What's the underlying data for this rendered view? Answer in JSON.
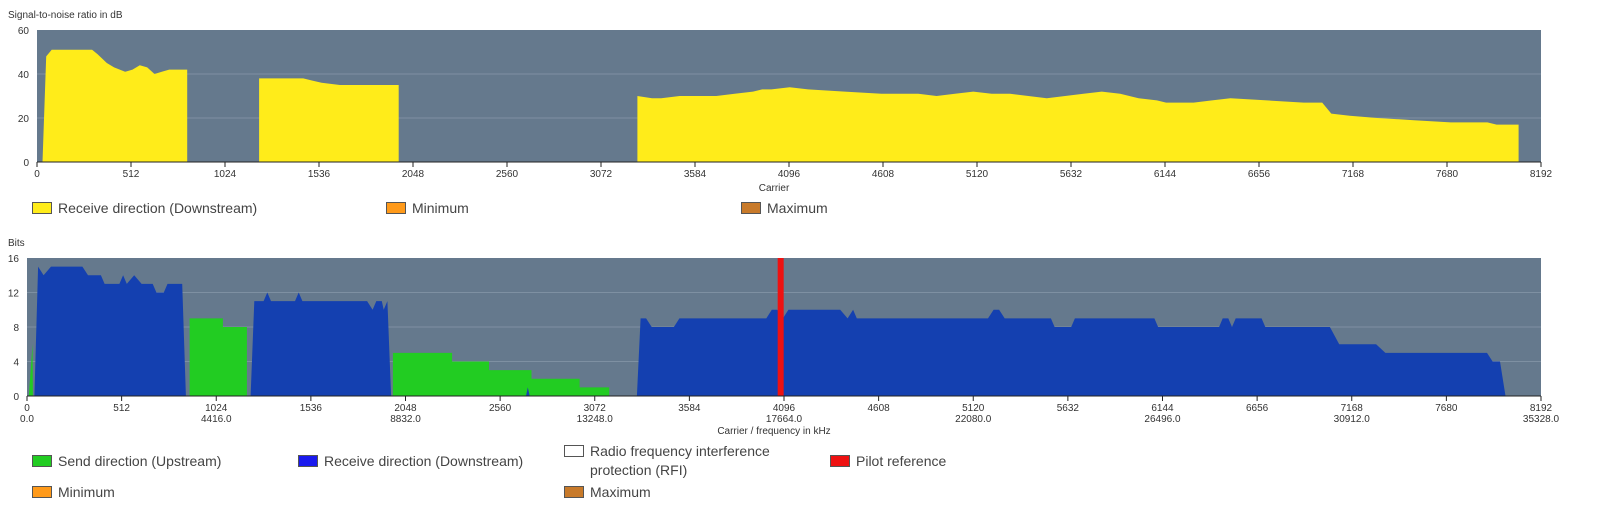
{
  "colors": {
    "plot_bg": "#65798d",
    "snr_fill": "#ffec1a",
    "up_fill": "#22cc22",
    "down_fill": "#1440b0",
    "pilot": "#ee1111",
    "rfi": "#ffffff",
    "minimum": "#ff9a1a",
    "maximum": "#c87a2a"
  },
  "chart_data": [
    {
      "type": "area",
      "ylabel": "Signal-to-noise ratio in dB",
      "xlabel": "Carrier",
      "xlim": [
        0,
        8192
      ],
      "ylim": [
        0,
        60
      ],
      "yticks": [
        0,
        20,
        40,
        60
      ],
      "xticks": [
        0,
        512,
        1024,
        1536,
        2048,
        2560,
        3072,
        3584,
        4096,
        4608,
        5120,
        5632,
        6144,
        6656,
        7168,
        7680,
        8192
      ],
      "grid": true,
      "series": [
        {
          "name": "Receive direction (Downstream)",
          "segments": [
            [
              [
                30,
                0
              ],
              [
                50,
                48
              ],
              [
                80,
                51
              ],
              [
                150,
                51
              ],
              [
                250,
                51
              ],
              [
                300,
                51
              ],
              [
                330,
                49
              ],
              [
                380,
                45
              ],
              [
                420,
                43
              ],
              [
                480,
                41
              ],
              [
                520,
                42
              ],
              [
                560,
                44
              ],
              [
                600,
                43
              ],
              [
                640,
                40
              ],
              [
                680,
                41
              ],
              [
                720,
                42
              ],
              [
                760,
                42
              ],
              [
                818,
                42
              ],
              [
                818,
                0
              ]
            ],
            [
              [
                1210,
                0
              ],
              [
                1210,
                38
              ],
              [
                1450,
                38
              ],
              [
                1500,
                37
              ],
              [
                1550,
                36
              ],
              [
                1650,
                35
              ],
              [
                1800,
                35
              ],
              [
                1900,
                35
              ],
              [
                1950,
                35
              ],
              [
                1970,
                35
              ],
              [
                1970,
                0
              ]
            ],
            [
              [
                3270,
                0
              ],
              [
                3270,
                30
              ],
              [
                3350,
                29
              ],
              [
                3400,
                29
              ],
              [
                3500,
                30
              ],
              [
                3584,
                30
              ],
              [
                3700,
                30
              ],
              [
                3800,
                31
              ],
              [
                3900,
                32
              ],
              [
                3950,
                33
              ],
              [
                4000,
                33
              ],
              [
                4100,
                34
              ],
              [
                4200,
                33
              ],
              [
                4400,
                32
              ],
              [
                4600,
                31
              ],
              [
                4800,
                31
              ],
              [
                4900,
                30
              ],
              [
                5000,
                31
              ],
              [
                5100,
                32
              ],
              [
                5200,
                31
              ],
              [
                5300,
                31
              ],
              [
                5400,
                30
              ],
              [
                5500,
                29
              ],
              [
                5600,
                30
              ],
              [
                5700,
                31
              ],
              [
                5800,
                32
              ],
              [
                5900,
                31
              ],
              [
                6000,
                29
              ],
              [
                6100,
                28
              ],
              [
                6150,
                27
              ],
              [
                6300,
                27
              ],
              [
                6400,
                28
              ],
              [
                6500,
                29
              ],
              [
                6700,
                28
              ],
              [
                6900,
                27
              ],
              [
                7000,
                27
              ],
              [
                7050,
                22
              ],
              [
                7150,
                21
              ],
              [
                7300,
                20
              ],
              [
                7500,
                19
              ],
              [
                7700,
                18
              ],
              [
                7900,
                18
              ],
              [
                7950,
                17
              ],
              [
                8070,
                17
              ],
              [
                8070,
                0
              ]
            ]
          ]
        }
      ],
      "legend": [
        "Receive direction (Downstream)",
        "Minimum",
        "Maximum"
      ]
    },
    {
      "type": "area",
      "ylabel": "Bits",
      "xlabel": "Carrier / frequency in kHz",
      "xlim": [
        0,
        8192
      ],
      "ylim": [
        0,
        16
      ],
      "yticks": [
        0,
        4,
        8,
        12,
        16
      ],
      "xticks": [
        0,
        512,
        1024,
        1536,
        2048,
        2560,
        3072,
        3584,
        4096,
        4608,
        5120,
        5632,
        6144,
        6656,
        7168,
        7680,
        8192
      ],
      "xticks_khz": [
        "0.0",
        "4416.0",
        "8832.0",
        "13248.0",
        "17664.0",
        "22080.0",
        "26496.0",
        "30912.0",
        "35328.0"
      ],
      "grid": true,
      "series": [
        {
          "name": "Send direction (Upstream)",
          "segments": [
            [
              [
                10,
                0
              ],
              [
                30,
                6
              ],
              [
                32,
                0
              ]
            ],
            [
              [
                880,
                0
              ],
              [
                880,
                9
              ],
              [
                1060,
                9
              ],
              [
                1060,
                8
              ],
              [
                1190,
                8
              ],
              [
                1190,
                0
              ]
            ],
            [
              [
                1980,
                0
              ],
              [
                1980,
                5
              ],
              [
                2300,
                5
              ],
              [
                2300,
                4
              ],
              [
                2500,
                4
              ],
              [
                2500,
                3
              ],
              [
                2730,
                3
              ],
              [
                2730,
                2
              ],
              [
                2990,
                2
              ],
              [
                2990,
                1
              ],
              [
                3150,
                1
              ],
              [
                3150,
                0
              ]
            ]
          ]
        },
        {
          "name": "Receive direction (Downstream)",
          "segments": [
            [
              [
                40,
                0
              ],
              [
                60,
                15
              ],
              [
                90,
                14
              ],
              [
                130,
                15
              ],
              [
                300,
                15
              ],
              [
                330,
                14
              ],
              [
                400,
                14
              ],
              [
                420,
                13
              ],
              [
                500,
                13
              ],
              [
                520,
                14
              ],
              [
                540,
                13
              ],
              [
                580,
                14
              ],
              [
                620,
                13
              ],
              [
                680,
                13
              ],
              [
                700,
                12
              ],
              [
                740,
                12
              ],
              [
                760,
                13
              ],
              [
                840,
                13
              ],
              [
                860,
                0
              ]
            ],
            [
              [
                1210,
                0
              ],
              [
                1230,
                11
              ],
              [
                1280,
                11
              ],
              [
                1300,
                12
              ],
              [
                1320,
                11
              ],
              [
                1450,
                11
              ],
              [
                1470,
                12
              ],
              [
                1490,
                11
              ],
              [
                1840,
                11
              ],
              [
                1870,
                10
              ],
              [
                1890,
                11
              ],
              [
                1920,
                11
              ],
              [
                1930,
                10
              ],
              [
                1950,
                11
              ],
              [
                1970,
                0
              ]
            ],
            [
              [
                2700,
                0
              ],
              [
                2710,
                1
              ],
              [
                2720,
                0
              ]
            ],
            [
              [
                3300,
                0
              ],
              [
                3320,
                9
              ],
              [
                3350,
                9
              ],
              [
                3380,
                8
              ],
              [
                3500,
                8
              ],
              [
                3530,
                9
              ],
              [
                4000,
                9
              ],
              [
                4030,
                10
              ],
              [
                4060,
                10
              ],
              [
                4090,
                9
              ],
              [
                4120,
                10
              ],
              [
                4400,
                10
              ],
              [
                4440,
                9
              ],
              [
                4470,
                10
              ],
              [
                4490,
                9
              ],
              [
                5200,
                9
              ],
              [
                5230,
                10
              ],
              [
                5260,
                10
              ],
              [
                5290,
                9
              ],
              [
                5540,
                9
              ],
              [
                5560,
                8
              ],
              [
                5650,
                8
              ],
              [
                5670,
                9
              ],
              [
                6100,
                9
              ],
              [
                6120,
                8
              ],
              [
                6450,
                8
              ],
              [
                6470,
                9
              ],
              [
                6500,
                9
              ],
              [
                6520,
                8
              ],
              [
                6540,
                9
              ],
              [
                6680,
                9
              ],
              [
                6700,
                8
              ],
              [
                7050,
                8
              ],
              [
                7100,
                6
              ],
              [
                7300,
                6
              ],
              [
                7350,
                5
              ],
              [
                7900,
                5
              ],
              [
                7930,
                4
              ],
              [
                7970,
                4
              ],
              [
                8000,
                0
              ]
            ]
          ]
        },
        {
          "name": "Pilot reference",
          "carrier": 4078
        }
      ],
      "legend": [
        "Send direction (Upstream)",
        "Receive direction (Downstream)",
        "Radio frequency interference protection (RFI)",
        "Pilot reference",
        "Minimum",
        "Maximum"
      ]
    }
  ],
  "legend1": {
    "down": "Receive direction (Downstream)",
    "min": "Minimum",
    "max": "Maximum"
  },
  "legend2": {
    "up": "Send direction (Upstream)",
    "down": "Receive direction (Downstream)",
    "rfi": "Radio frequency interference protection (RFI)",
    "pilot": "Pilot reference",
    "min": "Minimum",
    "max": "Maximum"
  }
}
